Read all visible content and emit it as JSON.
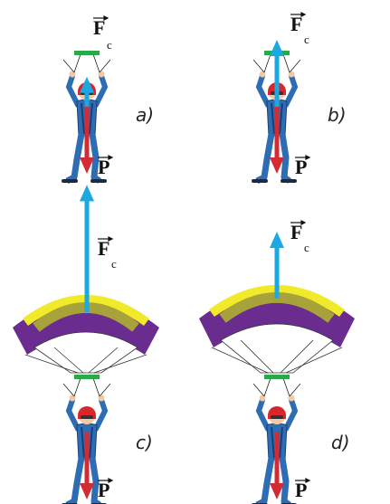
{
  "colors": {
    "weight_arrow": "#d42a33",
    "drag_arrow": "#1ba9e1",
    "suit": "#2e6db4",
    "suit_dark": "#1b3f75",
    "helmet": "#d7262c",
    "bar": "#2aa84a",
    "canopy_purple": "#6a2d8f",
    "canopy_olive": "#a7a23a",
    "canopy_yellow": "#f0ea2a",
    "canopy_white": "#ffffff"
  },
  "forces": {
    "weight": {
      "letter": "P",
      "sub": ""
    },
    "drag": {
      "letter": "F",
      "sub": "c"
    }
  },
  "panels": [
    {
      "id": "a",
      "label": "a)",
      "parachute_open": false,
      "drag_fraction_of_weight": 0.45
    },
    {
      "id": "b",
      "label": "b)",
      "parachute_open": false,
      "drag_fraction_of_weight": 1.0
    },
    {
      "id": "c",
      "label": "c)",
      "parachute_open": true,
      "drag_fraction_of_weight": 1.9
    },
    {
      "id": "d",
      "label": "d)",
      "parachute_open": true,
      "drag_fraction_of_weight": 1.0
    }
  ]
}
